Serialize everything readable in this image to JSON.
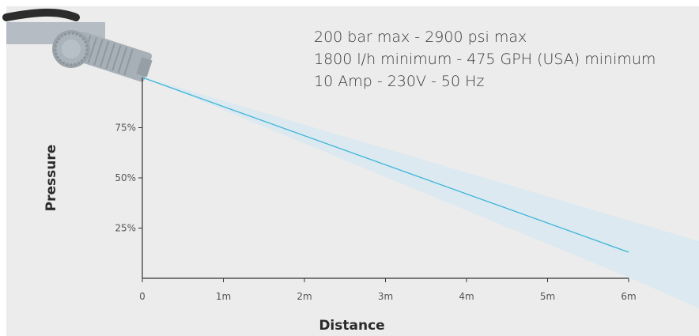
{
  "specs": {
    "line1": "200 bar max - 2900 psi max",
    "line2": "1800 l/h minimum - 475 GPH (USA) minimum",
    "line3": "10 Amp - 230V - 50 Hz"
  },
  "chart_data": {
    "type": "line",
    "xlabel": "Distance",
    "ylabel": "Pressure",
    "x_ticks": [
      "0",
      "1m",
      "2m",
      "3m",
      "4m",
      "5m",
      "6m"
    ],
    "y_ticks": [
      "25%",
      "50%",
      "75%"
    ],
    "xlim": [
      0,
      6
    ],
    "ylim": [
      0,
      100
    ],
    "series": [
      {
        "x": [
          0,
          6
        ],
        "y": [
          100,
          13
        ]
      }
    ],
    "grid": false
  },
  "colors": {
    "background": "#ececec",
    "line": "#3cb6d8",
    "spray": "#dce9f0",
    "axis": "#333333",
    "text": "#3a3a3a"
  },
  "icons": [
    "pressure-washer-nozzle-icon"
  ]
}
